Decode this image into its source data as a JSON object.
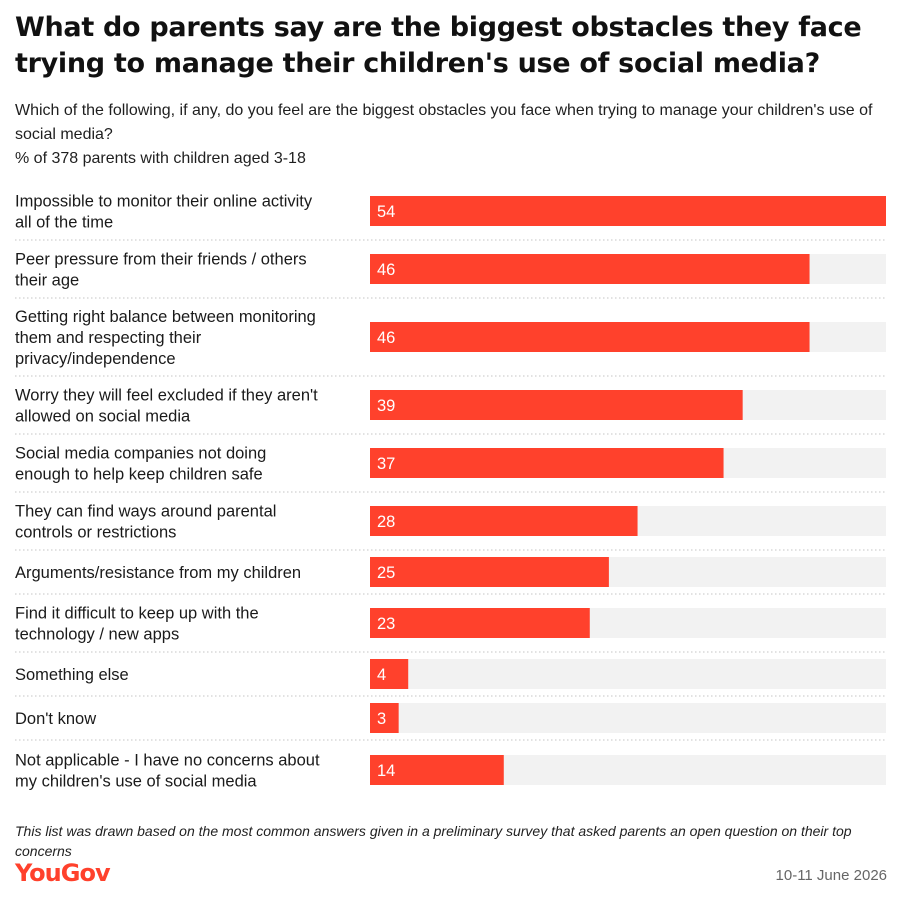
{
  "title": "What do parents say are the biggest obstacles they face trying to manage their children's use of social media?",
  "subtitle": {
    "question": "Which of the following, if any, do you feel are the biggest obstacles you face when trying to manage your children's use of social media?",
    "base": "% of 378 parents with children aged 3-18"
  },
  "footnote": "This list was drawn based on the most common answers given in a preliminary survey that asked parents an open question on their top concerns",
  "brand": "YouGov",
  "date": "10-11 June 2026",
  "colors": {
    "bar": "#ff412c",
    "track": "#f2f2f2",
    "divider": "#c4c4c4",
    "brand": "#ff412c"
  },
  "chart_data": {
    "type": "bar",
    "orientation": "horizontal",
    "xlim": [
      0,
      54
    ],
    "categories": [
      [
        "Impossible to monitor their online activity",
        "all of the time"
      ],
      [
        "Peer pressure from their friends / others",
        "their age"
      ],
      [
        "Getting right balance between monitoring",
        "them and respecting their",
        "privacy/independence"
      ],
      [
        "Worry they will feel excluded if they aren't",
        "allowed on social media"
      ],
      [
        "Social media companies not doing",
        "enough to help keep children safe"
      ],
      [
        "They can find ways around parental",
        "controls or restrictions"
      ],
      [
        "Arguments/resistance from my children"
      ],
      [
        "Find it difficult to keep up with the",
        "technology / new apps"
      ],
      [
        "Something else"
      ],
      [
        "Don't know"
      ],
      [
        "Not applicable - I have no concerns about",
        "my children's use of social media"
      ]
    ],
    "values": [
      54,
      46,
      46,
      39,
      37,
      28,
      25,
      23,
      4,
      3,
      14
    ]
  }
}
